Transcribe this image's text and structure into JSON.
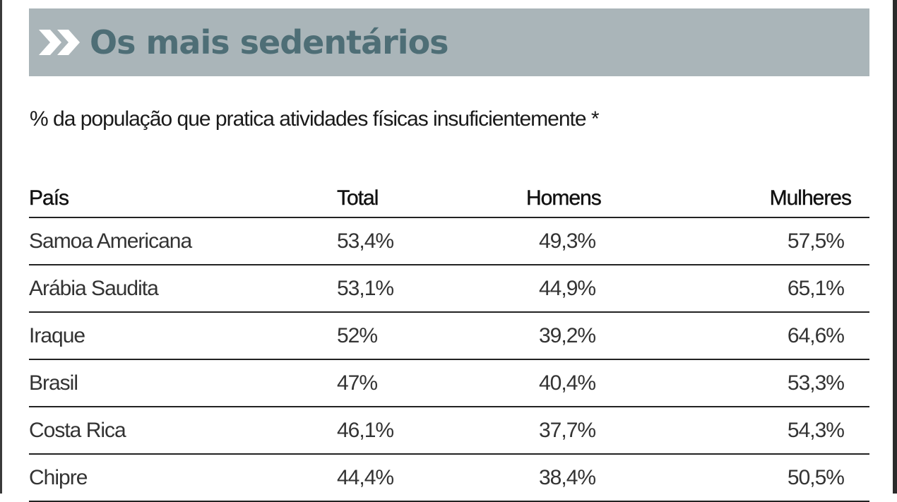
{
  "header": {
    "title": "Os mais sedentários",
    "accent_color": "#4e6e76",
    "band_color": "#aab5b9",
    "icon": "double-chevron-right-icon"
  },
  "subtitle": "% da população que pratica atividades físicas insuficientemente *",
  "table": {
    "columns": [
      "País",
      "Total",
      "Homens",
      "Mulheres"
    ],
    "rows": [
      [
        "Samoa Americana",
        "53,4%",
        "49,3%",
        "57,5%"
      ],
      [
        "Arábia Saudita",
        "53,1%",
        "44,9%",
        "65,1%"
      ],
      [
        "Iraque",
        "52%",
        "39,2%",
        "64,6%"
      ],
      [
        "Brasil",
        "47%",
        "40,4%",
        "53,3%"
      ],
      [
        "Costa Rica",
        "46,1%",
        "37,7%",
        "54,3%"
      ],
      [
        "Chipre",
        "44,4%",
        "38,4%",
        "50,5%"
      ]
    ]
  }
}
